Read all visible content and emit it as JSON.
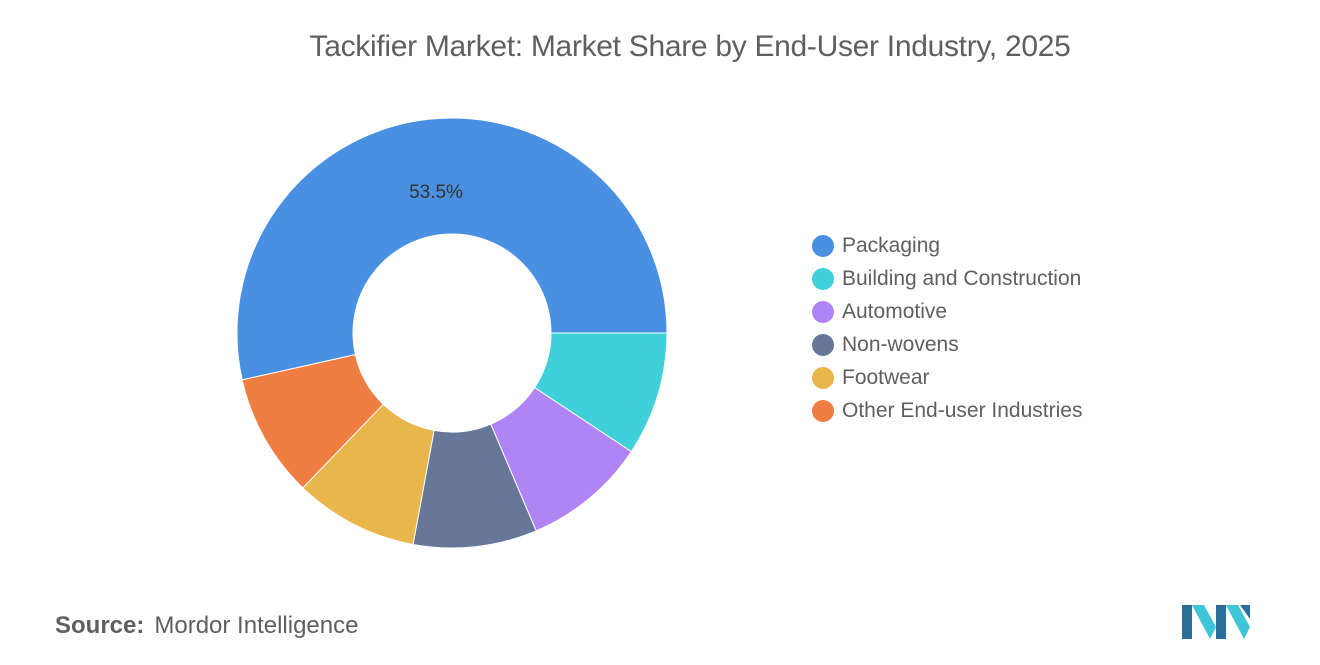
{
  "title": "Tackifier Market: Market Share by End-User Industry, 2025",
  "source": {
    "label": "Source:",
    "value": "Mordor Intelligence"
  },
  "logo": {
    "name": "mordor-intelligence-logo",
    "colors": [
      "#2a6f97",
      "#3ec6d8"
    ]
  },
  "chart_data": {
    "type": "pie",
    "donut": true,
    "title": "Tackifier Market: Market Share by End-User Industry, 2025",
    "legend_position": "right",
    "grid": false,
    "categories": [
      "Packaging",
      "Building and Construction",
      "Automotive",
      "Non-wovens",
      "Footwear",
      "Other End-user Industries"
    ],
    "values": [
      53.5,
      9.3,
      9.3,
      9.3,
      9.3,
      9.3
    ],
    "colors": [
      "#4a90e2",
      "#3fd0d9",
      "#b084f5",
      "#667799",
      "#e8b64a",
      "#f07d42"
    ],
    "data_labels": [
      "53.5%",
      "",
      "",
      "",
      "",
      ""
    ]
  }
}
